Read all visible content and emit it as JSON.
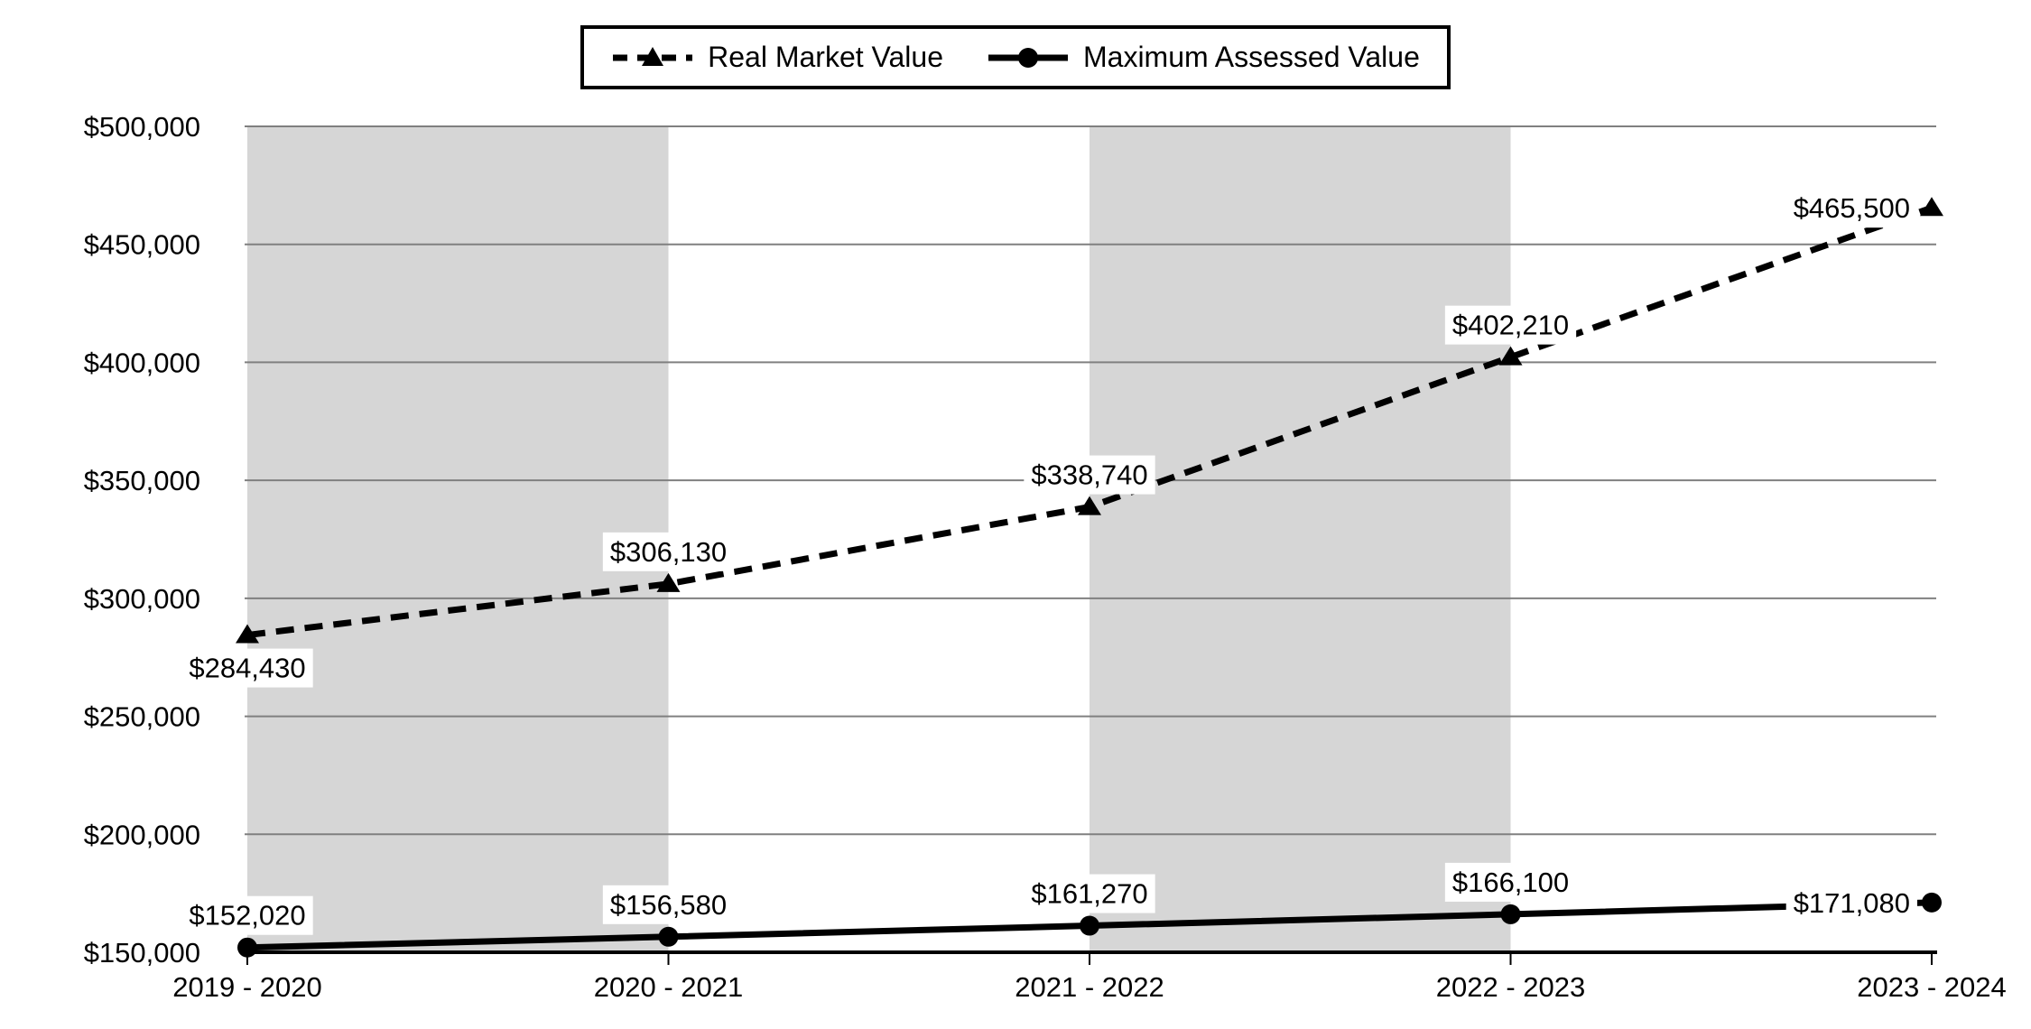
{
  "page": {
    "background_color": "#ffffff"
  },
  "chart_data": {
    "type": "line",
    "title": "",
    "categories": [
      "2019 - 2020",
      "2020 - 2021",
      "2021 - 2022",
      "2022 - 2023",
      "2023 - 2024"
    ],
    "series": [
      {
        "name": "Real Market Value",
        "line_style": "dashed",
        "marker": "triangle",
        "color": "#000000",
        "values": [
          284430,
          306130,
          338740,
          402210,
          465500
        ],
        "data_labels": [
          "$284,430",
          "$306,130",
          "$338,740",
          "$402,210",
          "$465,500"
        ],
        "label_placements": [
          "below",
          "above",
          "above",
          "above",
          "left"
        ]
      },
      {
        "name": "Maximum Assessed Value",
        "line_style": "solid",
        "marker": "circle",
        "color": "#000000",
        "values": [
          152020,
          156580,
          161270,
          166100,
          171080
        ],
        "data_labels": [
          "$152,020",
          "$156,580",
          "$161,270",
          "$166,100",
          "$171,080"
        ],
        "label_placements": [
          "above",
          "above",
          "above",
          "above",
          "left"
        ]
      }
    ],
    "y_axis": {
      "min": 150000,
      "max": 500000,
      "step": 50000,
      "tick_labels": [
        "$150,000",
        "$200,000",
        "$250,000",
        "$300,000",
        "$350,000",
        "$400,000",
        "$450,000",
        "$500,000"
      ]
    },
    "x_axis": {
      "tick_labels": [
        "2019 - 2020",
        "2020 - 2021",
        "2021 - 2022",
        "2022 - 2023",
        "2023 - 2024"
      ]
    },
    "layout_hints": {
      "legend_position": "top-center",
      "grid": "horizontal-only",
      "shaded_intervals": [
        [
          0,
          1
        ],
        [
          2,
          3
        ]
      ],
      "band_color": "#d6d6d6",
      "grid_color": "#808080",
      "axis_color": "#000000",
      "data_label_background": "#ffffff",
      "text_color": "#000000"
    }
  }
}
